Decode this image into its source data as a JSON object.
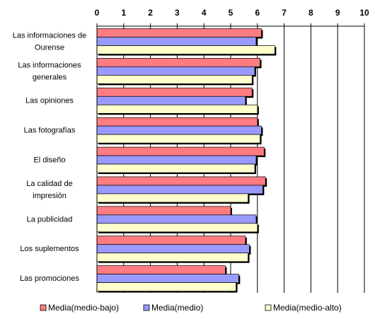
{
  "chart_data": {
    "type": "bar",
    "orientation": "horizontal",
    "xlim": [
      0,
      10
    ],
    "ticks": [
      "0",
      "1",
      "2",
      "3",
      "4",
      "5",
      "6",
      "7",
      "8",
      "9",
      "10"
    ],
    "tick_position": "top",
    "grid": true,
    "legend_position": "bottom",
    "categories": [
      [
        "Las informaciones de",
        "Ourense"
      ],
      [
        "Las informaciones",
        "generales"
      ],
      [
        "Las opiniones"
      ],
      [
        "Las fotografías"
      ],
      [
        "El diseño"
      ],
      [
        "La calidad de",
        "impresión"
      ],
      [
        "La publicidad"
      ],
      [
        "Los suplementos"
      ],
      [
        "Las promociones"
      ]
    ],
    "series": [
      {
        "name": "Media(medio-bajo)",
        "color": "#FF7C80",
        "values": [
          6.15,
          6.1,
          5.8,
          6.0,
          6.25,
          6.3,
          5.0,
          5.55,
          4.8
        ]
      },
      {
        "name": "Media(medio)",
        "color": "#9999FF",
        "values": [
          5.95,
          5.9,
          5.55,
          6.15,
          5.95,
          6.2,
          5.95,
          5.7,
          5.3
        ]
      },
      {
        "name": "Media(medio-alto)",
        "color": "#FFFFCC",
        "values": [
          6.65,
          5.8,
          6.0,
          6.1,
          5.9,
          5.65,
          6.0,
          5.65,
          5.2
        ]
      }
    ]
  }
}
